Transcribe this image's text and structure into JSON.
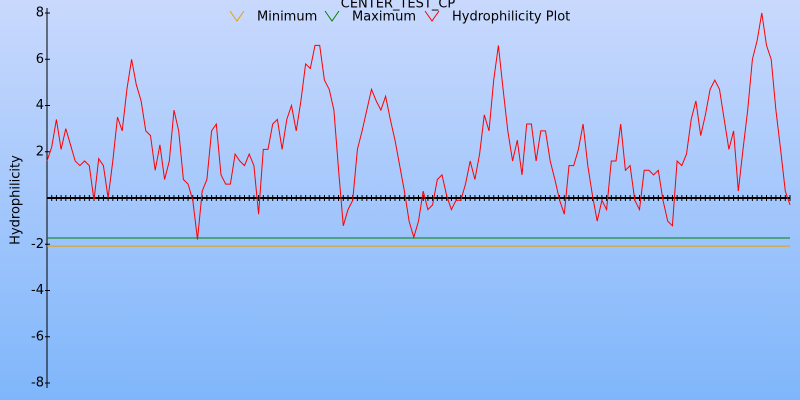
{
  "chart_data": {
    "type": "line",
    "title": "CENTER_TEST_CP",
    "ylabel": "Hydrophilicity",
    "ylim": [
      -8,
      8
    ],
    "yticks": [
      -8,
      -6,
      -4,
      -2,
      2,
      4,
      6,
      8
    ],
    "series": [
      {
        "name": "Minimum",
        "color": "#e8a000",
        "value": -2.08
      },
      {
        "name": "Maximum",
        "color": "#008000",
        "value": -1.73
      },
      {
        "name": "Hydrophilicity Plot",
        "color": "#ff0000",
        "values": [
          1.6,
          2.2,
          3.4,
          2.1,
          3.0,
          2.3,
          1.6,
          1.4,
          1.6,
          1.4,
          -0.1,
          1.7,
          1.4,
          0.0,
          1.6,
          3.5,
          2.9,
          4.7,
          6.0,
          4.9,
          4.2,
          2.9,
          2.7,
          1.2,
          2.3,
          0.8,
          1.6,
          3.8,
          2.9,
          0.8,
          0.6,
          -0.1,
          -1.8,
          0.3,
          0.8,
          2.9,
          3.2,
          1.0,
          0.6,
          0.6,
          1.9,
          1.6,
          1.4,
          1.9,
          1.4,
          -0.7,
          2.1,
          2.1,
          3.2,
          3.4,
          2.1,
          3.4,
          4.0,
          2.9,
          4.2,
          5.8,
          5.6,
          6.6,
          6.6,
          5.1,
          4.7,
          3.8,
          1.2,
          -1.2,
          -0.5,
          -0.1,
          2.1,
          2.9,
          3.8,
          4.7,
          4.2,
          3.8,
          4.4,
          3.4,
          2.5,
          1.4,
          0.3,
          -1.0,
          -1.7,
          -1.0,
          0.3,
          -0.5,
          -0.3,
          0.8,
          1.0,
          0.1,
          -0.5,
          -0.1,
          -0.1,
          0.6,
          1.6,
          0.8,
          1.9,
          3.6,
          2.9,
          5.1,
          6.6,
          4.7,
          2.9,
          1.6,
          2.5,
          1.0,
          3.2,
          3.2,
          1.6,
          2.9,
          2.9,
          1.6,
          0.8,
          -0.1,
          -0.7,
          1.4,
          1.4,
          2.1,
          3.2,
          1.4,
          0.1,
          -1.0,
          -0.1,
          -0.5,
          1.6,
          1.6,
          3.2,
          1.2,
          1.4,
          -0.1,
          -0.5,
          1.2,
          1.2,
          1.0,
          1.2,
          -0.1,
          -1.0,
          -1.2,
          1.6,
          1.4,
          1.9,
          3.4,
          4.2,
          2.7,
          3.6,
          4.7,
          5.1,
          4.7,
          3.4,
          2.1,
          2.9,
          0.3,
          2.1,
          3.8,
          6.0,
          6.8,
          8.0,
          6.6,
          6.0,
          3.8,
          2.1,
          0.3,
          -0.3
        ]
      }
    ]
  }
}
